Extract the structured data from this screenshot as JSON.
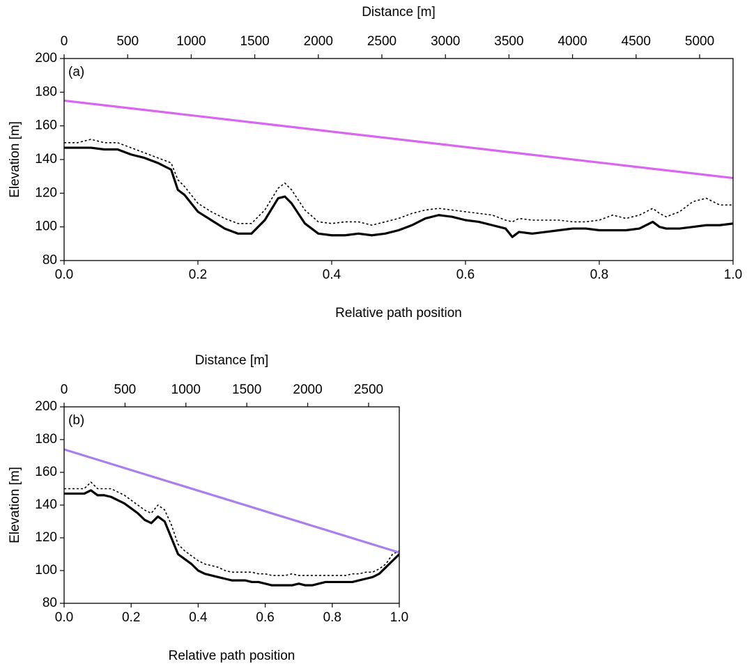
{
  "chart_data": [
    {
      "type": "line",
      "panel_label": "(a)",
      "xlabel": "Relative path position",
      "ylabel": "Elevation [m]",
      "x2label": "Distance [m]",
      "xlim": [
        0,
        1
      ],
      "xticks": [
        {
          "value": 0,
          "label": "0.0"
        },
        {
          "value": 0.2,
          "label": "0.2"
        },
        {
          "value": 0.4,
          "label": "0.4"
        },
        {
          "value": 0.6,
          "label": "0.6"
        },
        {
          "value": 0.8,
          "label": "0.8"
        },
        {
          "value": 1,
          "label": "1.0"
        }
      ],
      "ylim": [
        80,
        200
      ],
      "yticks": [
        80,
        100,
        120,
        140,
        160,
        180,
        200
      ],
      "x2lim": [
        0,
        5263
      ],
      "x2ticks": [
        0,
        500,
        1000,
        1500,
        2000,
        2500,
        3000,
        3500,
        4000,
        4500,
        5000
      ],
      "x": [
        0,
        0.02,
        0.04,
        0.06,
        0.08,
        0.1,
        0.12,
        0.14,
        0.16,
        0.17,
        0.18,
        0.2,
        0.22,
        0.24,
        0.26,
        0.28,
        0.3,
        0.32,
        0.33,
        0.34,
        0.36,
        0.38,
        0.4,
        0.42,
        0.44,
        0.46,
        0.48,
        0.5,
        0.52,
        0.54,
        0.56,
        0.58,
        0.6,
        0.62,
        0.64,
        0.66,
        0.67,
        0.68,
        0.7,
        0.72,
        0.74,
        0.76,
        0.78,
        0.8,
        0.82,
        0.84,
        0.86,
        0.88,
        0.89,
        0.9,
        0.92,
        0.94,
        0.96,
        0.98,
        1.0
      ],
      "series": [
        {
          "color": "#000000",
          "linestyle": "dotted",
          "values": [
            150,
            150,
            152,
            150,
            150,
            147,
            144,
            141,
            138,
            128,
            124,
            114,
            109,
            105,
            102,
            102,
            110,
            123,
            126,
            122,
            110,
            103,
            102,
            103,
            103,
            101,
            103,
            105,
            108,
            110,
            111,
            110,
            109,
            108,
            107,
            104,
            103,
            105,
            104,
            104,
            104,
            103,
            103,
            104,
            107,
            105,
            107,
            111,
            108,
            106,
            109,
            115,
            117,
            113,
            113
          ]
        },
        {
          "color": "#000000",
          "linestyle": "solid",
          "values": [
            147,
            147,
            147,
            146,
            146,
            143,
            141,
            138,
            134,
            122,
            119,
            109,
            104,
            99,
            96,
            96,
            104,
            117,
            118,
            114,
            102,
            96,
            95,
            95,
            96,
            95,
            96,
            98,
            101,
            105,
            107,
            106,
            104,
            103,
            101,
            99,
            94,
            97,
            96,
            97,
            98,
            99,
            99,
            98,
            98,
            98,
            99,
            103,
            100,
            99,
            99,
            100,
            101,
            101,
            102
          ]
        },
        {
          "color": "#d966f0",
          "linestyle": "solid",
          "x": [
            0,
            1
          ],
          "values": [
            175,
            129
          ]
        }
      ]
    },
    {
      "type": "line",
      "panel_label": "(b)",
      "xlabel": "Relative path position",
      "ylabel": "Elevation [m]",
      "x2label": "Distance [m]",
      "xlim": [
        0,
        1
      ],
      "xticks": [
        {
          "value": 0,
          "label": "0.0"
        },
        {
          "value": 0.2,
          "label": "0.2"
        },
        {
          "value": 0.4,
          "label": "0.4"
        },
        {
          "value": 0.6,
          "label": "0.6"
        },
        {
          "value": 0.8,
          "label": "0.8"
        },
        {
          "value": 1,
          "label": "1.0"
        }
      ],
      "ylim": [
        80,
        200
      ],
      "yticks": [
        80,
        100,
        120,
        140,
        160,
        180,
        200
      ],
      "x2lim": [
        0,
        2752
      ],
      "x2ticks": [
        0,
        500,
        1000,
        1500,
        2000,
        2500
      ],
      "x": [
        0,
        0.02,
        0.04,
        0.06,
        0.08,
        0.1,
        0.12,
        0.14,
        0.16,
        0.18,
        0.2,
        0.22,
        0.24,
        0.26,
        0.28,
        0.3,
        0.32,
        0.34,
        0.36,
        0.38,
        0.4,
        0.42,
        0.44,
        0.46,
        0.48,
        0.5,
        0.52,
        0.54,
        0.56,
        0.58,
        0.6,
        0.62,
        0.64,
        0.66,
        0.68,
        0.7,
        0.72,
        0.74,
        0.76,
        0.78,
        0.8,
        0.82,
        0.84,
        0.86,
        0.88,
        0.9,
        0.92,
        0.94,
        0.96,
        0.98,
        1.0
      ],
      "series": [
        {
          "color": "#000000",
          "linestyle": "dotted",
          "values": [
            150,
            150,
            150,
            150,
            154,
            150,
            150,
            150,
            148,
            146,
            143,
            140,
            137,
            135,
            140,
            137,
            128,
            116,
            112,
            109,
            106,
            104,
            103,
            102,
            100,
            99,
            99,
            99,
            99,
            98,
            98,
            97,
            97,
            97,
            98,
            97,
            97,
            97,
            97,
            97,
            97,
            97,
            97,
            98,
            98,
            99,
            99,
            101,
            104,
            110,
            112
          ]
        },
        {
          "color": "#000000",
          "linestyle": "solid",
          "values": [
            147,
            147,
            147,
            147,
            149,
            146,
            146,
            145,
            143,
            141,
            138,
            135,
            131,
            129,
            133,
            130,
            120,
            110,
            107,
            104,
            100,
            98,
            97,
            96,
            95,
            94,
            94,
            94,
            93,
            93,
            92,
            91,
            91,
            91,
            91,
            92,
            91,
            91,
            92,
            93,
            93,
            93,
            93,
            93,
            94,
            95,
            96,
            98,
            102,
            106,
            110
          ]
        },
        {
          "color": "#a97ff0",
          "linestyle": "solid",
          "x": [
            0,
            1
          ],
          "values": [
            174,
            111
          ]
        }
      ]
    }
  ]
}
